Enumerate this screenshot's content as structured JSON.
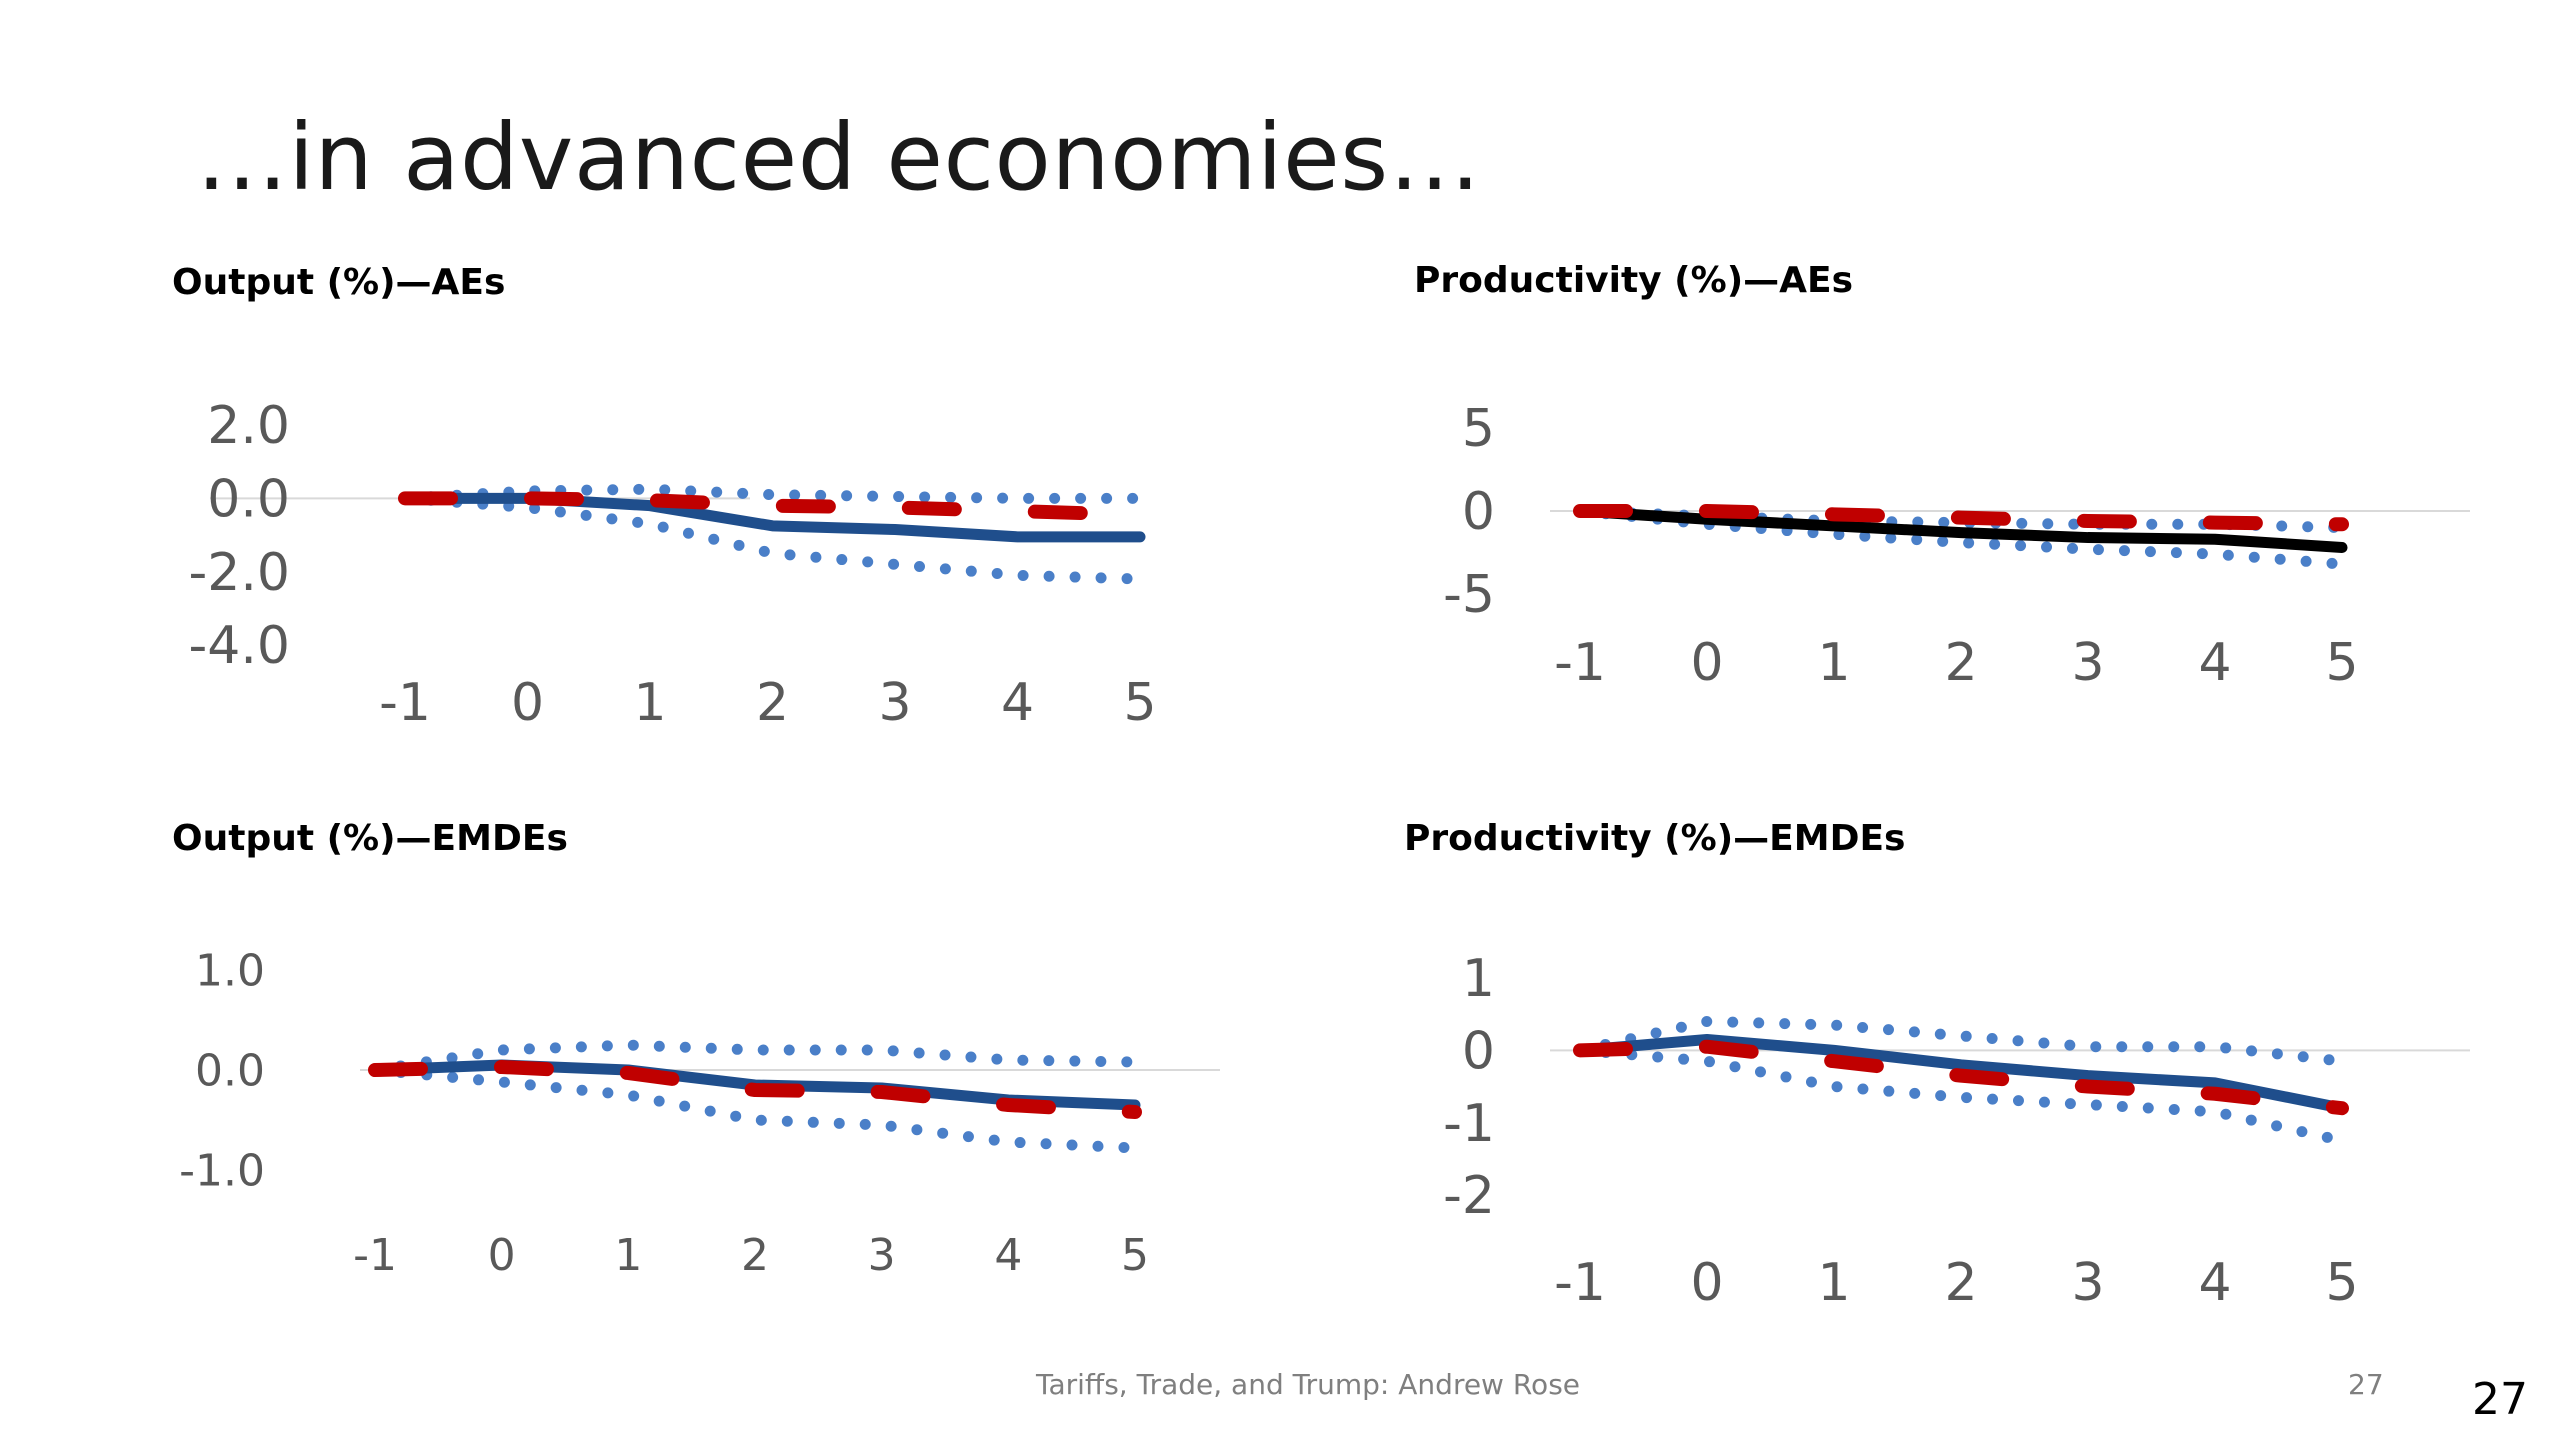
{
  "slide": {
    "title": "…in advanced economies…",
    "footer": "Tariffs, Trade, and Trump: Andrew Rose",
    "page_number_small": "27",
    "page_number": "27"
  },
  "colors": {
    "blue_line": "#1f4e8c",
    "blue_dot": "#4a7fc8",
    "red_dash": "#c00000",
    "black_line": "#000000",
    "axis": "#d9d9d9"
  },
  "chart_data": [
    {
      "id": "output-aes",
      "type": "line",
      "title": "Output (%)—AEs",
      "x": [
        -1,
        0,
        1,
        2,
        3,
        4,
        5
      ],
      "xticks": [
        "-1",
        "0",
        "1",
        "2",
        "3",
        "4",
        "5"
      ],
      "ylim": [
        -4.0,
        2.0
      ],
      "yticks": [
        2.0,
        0.0,
        -2.0,
        -4.0
      ],
      "ytick_labels": [
        "2.0",
        "0.0",
        "-2.0",
        "-4.0"
      ],
      "series": [
        {
          "name": "estimate",
          "style": "solid-blue",
          "values": [
            0.0,
            0.0,
            -0.2,
            -0.75,
            -0.85,
            -1.05,
            -1.05
          ]
        },
        {
          "name": "upper band",
          "style": "dotted",
          "values": [
            0.0,
            0.2,
            0.25,
            0.1,
            0.05,
            0.0,
            0.0
          ]
        },
        {
          "name": "lower band",
          "style": "dotted",
          "values": [
            0.0,
            -0.25,
            -0.7,
            -1.5,
            -1.8,
            -2.1,
            -2.2
          ]
        },
        {
          "name": "alternative",
          "style": "dashed-red",
          "values": [
            0.0,
            0.0,
            -0.05,
            -0.2,
            -0.25,
            -0.35,
            -0.45
          ]
        }
      ]
    },
    {
      "id": "productivity-aes",
      "type": "line",
      "title": "Productivity (%)—AEs",
      "x": [
        -1,
        0,
        1,
        2,
        3,
        4,
        5
      ],
      "xticks": [
        "-1",
        "0",
        "1",
        "2",
        "3",
        "4",
        "5"
      ],
      "ylim": [
        -5,
        5
      ],
      "yticks": [
        5,
        0,
        -5
      ],
      "ytick_labels": [
        "5",
        "0",
        "-5"
      ],
      "series": [
        {
          "name": "estimate",
          "style": "solid-black",
          "values": [
            0.0,
            -0.5,
            -0.9,
            -1.3,
            -1.6,
            -1.7,
            -2.2
          ]
        },
        {
          "name": "upper band",
          "style": "dotted",
          "values": [
            0.0,
            -0.3,
            -0.6,
            -0.7,
            -0.8,
            -0.8,
            -1.0
          ]
        },
        {
          "name": "lower band",
          "style": "dotted",
          "values": [
            0.0,
            -0.8,
            -1.4,
            -1.9,
            -2.3,
            -2.6,
            -3.2
          ]
        },
        {
          "name": "alternative",
          "style": "dashed-red",
          "values": [
            0.0,
            0.0,
            -0.2,
            -0.4,
            -0.6,
            -0.7,
            -0.8
          ]
        }
      ]
    },
    {
      "id": "output-emdes",
      "type": "line",
      "title": "Output (%)—EMDEs",
      "x": [
        -1,
        0,
        1,
        2,
        3,
        4,
        5
      ],
      "xticks": [
        "-1",
        "0",
        "1",
        "2",
        "3",
        "4",
        "5"
      ],
      "ylim": [
        -1.0,
        1.0
      ],
      "yticks": [
        1.0,
        0.0,
        -1.0
      ],
      "ytick_labels": [
        "1.0",
        "0.0",
        "-1.0"
      ],
      "series": [
        {
          "name": "estimate",
          "style": "solid-blue",
          "values": [
            0.0,
            0.05,
            0.0,
            -0.15,
            -0.18,
            -0.3,
            -0.35
          ]
        },
        {
          "name": "upper band",
          "style": "dotted",
          "values": [
            0.0,
            0.2,
            0.25,
            0.2,
            0.2,
            0.1,
            0.08
          ]
        },
        {
          "name": "lower band",
          "style": "dotted",
          "values": [
            0.0,
            -0.12,
            -0.25,
            -0.5,
            -0.55,
            -0.72,
            -0.78
          ]
        },
        {
          "name": "alternative",
          "style": "dashed-red",
          "values": [
            0.0,
            0.03,
            -0.03,
            -0.2,
            -0.22,
            -0.35,
            -0.42
          ]
        }
      ]
    },
    {
      "id": "productivity-emdes",
      "type": "line",
      "title": "Productivity (%)—EMDEs",
      "x": [
        -1,
        0,
        1,
        2,
        3,
        4,
        5
      ],
      "xticks": [
        "-1",
        "0",
        "1",
        "2",
        "3",
        "4",
        "5"
      ],
      "ylim": [
        -2,
        1
      ],
      "yticks": [
        1,
        0,
        -1,
        -2
      ],
      "ytick_labels": [
        "1",
        "0",
        "-1",
        "-2"
      ],
      "series": [
        {
          "name": "estimate",
          "style": "solid-blue",
          "values": [
            0.0,
            0.15,
            0.0,
            -0.2,
            -0.35,
            -0.45,
            -0.8
          ]
        },
        {
          "name": "upper band",
          "style": "dotted",
          "values": [
            0.0,
            0.4,
            0.35,
            0.2,
            0.05,
            0.05,
            -0.15
          ]
        },
        {
          "name": "lower band",
          "style": "dotted",
          "values": [
            0.0,
            -0.15,
            -0.5,
            -0.65,
            -0.75,
            -0.85,
            -1.25
          ]
        },
        {
          "name": "alternative",
          "style": "dashed-red",
          "values": [
            0.0,
            0.05,
            -0.15,
            -0.35,
            -0.5,
            -0.6,
            -0.8
          ]
        }
      ]
    }
  ]
}
